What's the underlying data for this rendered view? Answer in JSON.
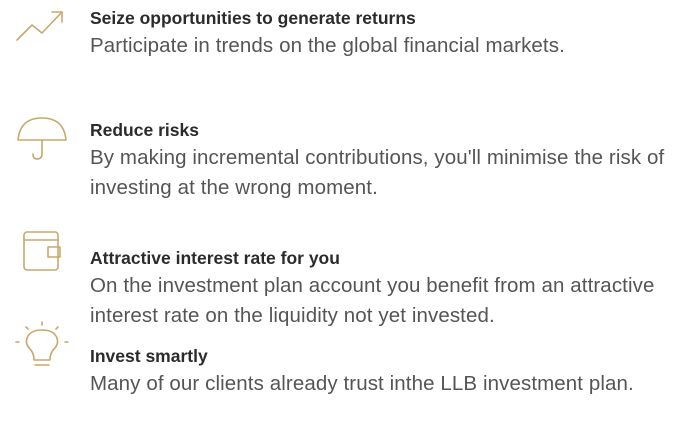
{
  "items": [
    {
      "title": "Seize opportunities to generate returns",
      "text": "Participate in trends on the global financial markets."
    },
    {
      "title": "Reduce risks",
      "text": "By making incremental contributions, you'll minimise the risk of investing at the wrong moment."
    },
    {
      "title": "Attractive interest rate for you",
      "text": "On the investment plan account you benefit from an attractive interest rate on the liquidity not yet invested."
    },
    {
      "title": "Invest smartly",
      "text": "Many of our clients already trust inthe LLB investment plan."
    }
  ]
}
